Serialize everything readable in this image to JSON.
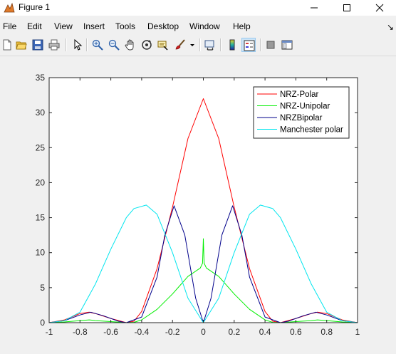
{
  "window": {
    "title": "Figure 1"
  },
  "menu": [
    "File",
    "Edit",
    "View",
    "Insert",
    "Tools",
    "Desktop",
    "Window",
    "Help"
  ],
  "toolbar": {
    "icons": [
      "new-figure-icon",
      "open-file-icon",
      "save-icon",
      "print-icon",
      "select-arrow-icon",
      "zoom-in-icon",
      "zoom-out-icon",
      "pan-icon",
      "rotate-3d-icon",
      "data-cursor-icon",
      "brush-icon",
      "link-plot-icon",
      "colorbar-icon",
      "legend-icon",
      "hide-plot-tools-icon",
      "show-plot-tools-icon"
    ]
  },
  "chart_data": {
    "type": "line",
    "title": "",
    "xlabel": "",
    "ylabel": "",
    "xlim": [
      -1,
      1
    ],
    "ylim": [
      0,
      35
    ],
    "xticks": [
      -1,
      -0.8,
      -0.6,
      -0.4,
      -0.2,
      0,
      0.2,
      0.4,
      0.6,
      0.8,
      1
    ],
    "xtick_labels": [
      "-1",
      "-0.8",
      "-0.6",
      "-0.4",
      "-0.2",
      "0",
      "0.2",
      "0.4",
      "0.6",
      "0.8",
      "1"
    ],
    "yticks": [
      0,
      5,
      10,
      15,
      20,
      25,
      30,
      35
    ],
    "ytick_labels": [
      "0",
      "5",
      "10",
      "15",
      "20",
      "25",
      "30",
      "35"
    ],
    "grid": false,
    "legend_position": "top-right",
    "series": [
      {
        "name": "NRZ-Polar",
        "color": "#ff0000",
        "x": [
          -1,
          -0.9,
          -0.8,
          -0.74,
          -0.7,
          -0.6,
          -0.5,
          -0.45,
          -0.4,
          -0.3,
          -0.2,
          -0.1,
          0,
          0.1,
          0.2,
          0.3,
          0.4,
          0.45,
          0.5,
          0.6,
          0.7,
          0.74,
          0.8,
          0.9,
          1
        ],
        "y": [
          0,
          0.4,
          1.3,
          1.5,
          1.3,
          0.6,
          0,
          0.2,
          1.6,
          7.7,
          16.5,
          26.3,
          32,
          26.3,
          16.5,
          7.7,
          1.6,
          0.2,
          0,
          0.6,
          1.3,
          1.5,
          1.3,
          0.4,
          0
        ]
      },
      {
        "name": "NRZ-Unipolar",
        "color": "#00ee00",
        "x": [
          -1,
          -0.9,
          -0.8,
          -0.74,
          -0.7,
          -0.6,
          -0.5,
          -0.45,
          -0.4,
          -0.3,
          -0.2,
          -0.1,
          -0.02,
          -0.005,
          0,
          0.005,
          0.02,
          0.1,
          0.2,
          0.3,
          0.4,
          0.45,
          0.5,
          0.6,
          0.7,
          0.74,
          0.8,
          0.9,
          1
        ],
        "y": [
          0,
          0.1,
          0.3,
          0.4,
          0.3,
          0.15,
          0,
          0.05,
          0.4,
          1.9,
          4.1,
          6.6,
          7.8,
          8.5,
          12,
          8.5,
          7.8,
          6.6,
          4.1,
          1.9,
          0.4,
          0.05,
          0,
          0.15,
          0.3,
          0.4,
          0.3,
          0.1,
          0
        ]
      },
      {
        "name": "NRZBipolar",
        "color": "#00008b",
        "x": [
          -1,
          -0.9,
          -0.8,
          -0.73,
          -0.65,
          -0.55,
          -0.5,
          -0.4,
          -0.3,
          -0.25,
          -0.19,
          -0.12,
          -0.05,
          0,
          0.05,
          0.12,
          0.19,
          0.25,
          0.3,
          0.4,
          0.5,
          0.55,
          0.65,
          0.73,
          0.8,
          0.9,
          1
        ],
        "y": [
          0,
          0.3,
          1.1,
          1.5,
          1.0,
          0.2,
          0,
          0.8,
          6.5,
          12.5,
          16.7,
          12.5,
          3.5,
          0,
          3.5,
          12.5,
          16.7,
          12.5,
          6.5,
          0.8,
          0,
          0.2,
          1.0,
          1.5,
          1.1,
          0.3,
          0
        ]
      },
      {
        "name": "Manchester polar",
        "color": "#00e5ee",
        "x": [
          -1,
          -0.9,
          -0.8,
          -0.7,
          -0.6,
          -0.5,
          -0.45,
          -0.37,
          -0.3,
          -0.2,
          -0.1,
          0,
          0.1,
          0.2,
          0.3,
          0.37,
          0.45,
          0.5,
          0.6,
          0.7,
          0.8,
          0.9,
          1
        ],
        "y": [
          0,
          0.3,
          1.5,
          5.5,
          10.5,
          15.0,
          16.3,
          16.8,
          15.5,
          10.0,
          3.5,
          0,
          3.5,
          10.0,
          15.5,
          16.8,
          16.3,
          15.0,
          10.5,
          5.5,
          1.5,
          0.3,
          0
        ]
      }
    ]
  }
}
